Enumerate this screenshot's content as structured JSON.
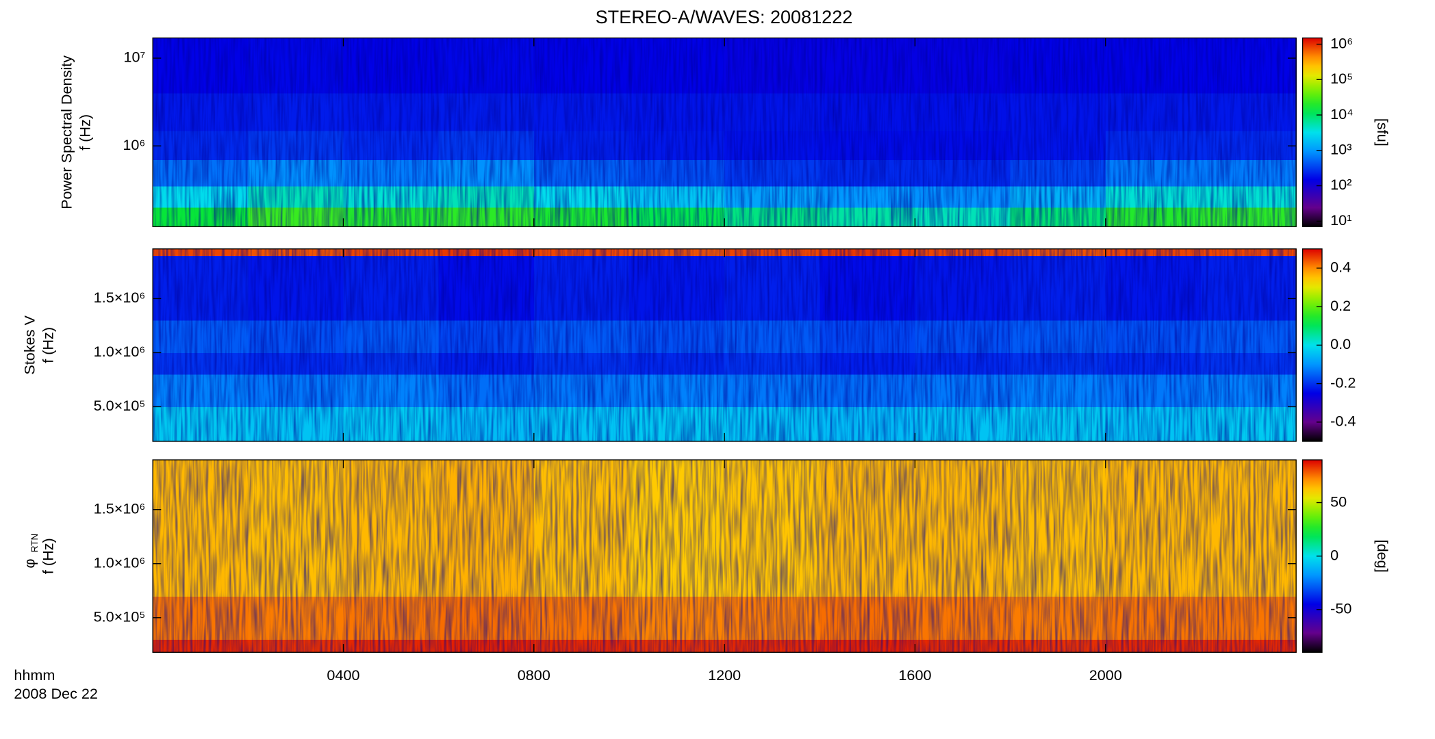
{
  "chart_data": [
    {
      "type": "heatmap",
      "title": "STEREO-A/WAVES: 20081222",
      "ylabel": [
        "Power Spectral Density",
        "f (Hz)"
      ],
      "xlim": [
        0,
        24
      ],
      "ylim": [
        120000,
        17000000
      ],
      "ylog": true,
      "yticks": [
        {
          "value": 1000000,
          "label": "10⁶"
        },
        {
          "value": 10000000,
          "label": "10⁷"
        }
      ],
      "xbins": [
        0,
        2,
        4,
        6,
        8,
        10,
        12,
        14,
        16,
        18,
        20,
        22,
        24
      ],
      "ybins": [
        120000,
        200000,
        350000,
        700000,
        1500000,
        4000000,
        17000000
      ],
      "z": [
        [
          15000,
          25000,
          20000,
          22000,
          18000,
          12000,
          8000,
          6000,
          5000,
          9000,
          20000,
          22000
        ],
        [
          3000,
          5000,
          4000,
          5000,
          3000,
          2000,
          1200,
          1000,
          900,
          1500,
          4000,
          4000
        ],
        [
          600,
          900,
          700,
          900,
          500,
          400,
          300,
          250,
          250,
          350,
          700,
          700
        ],
        [
          250,
          300,
          250,
          300,
          220,
          200,
          180,
          170,
          170,
          190,
          250,
          250
        ],
        [
          200,
          210,
          200,
          210,
          200,
          190,
          190,
          180,
          180,
          190,
          200,
          200
        ],
        [
          150,
          160,
          150,
          160,
          150,
          150,
          140,
          140,
          140,
          150,
          150,
          150
        ]
      ],
      "colormap": "rainbow",
      "clog": true,
      "clim": [
        7,
        1500000
      ],
      "cticks": [
        {
          "value": 10,
          "label": "10¹"
        },
        {
          "value": 100,
          "label": "10²"
        },
        {
          "value": 1000,
          "label": "10³"
        },
        {
          "value": 10000,
          "label": "10⁴"
        },
        {
          "value": 100000,
          "label": "10⁵"
        },
        {
          "value": 1000000,
          "label": "10⁶"
        }
      ],
      "clabel": "[sfu]"
    },
    {
      "type": "heatmap",
      "ylabel": [
        "Stokes V",
        "f (Hz)"
      ],
      "xlim": [
        0,
        24
      ],
      "ylim": [
        180000,
        1960000
      ],
      "yticks": [
        {
          "value": 500000,
          "label": "5.0×10⁵"
        },
        {
          "value": 1000000,
          "label": "1.0×10⁶"
        },
        {
          "value": 1500000,
          "label": "1.5×10⁶"
        }
      ],
      "xbins": [
        0,
        2,
        4,
        6,
        8,
        10,
        12,
        14,
        16,
        18,
        20,
        22,
        24
      ],
      "ybins": [
        180000,
        500000,
        800000,
        1000000,
        1300000,
        1900000,
        1960000
      ],
      "z": [
        [
          -0.03,
          -0.04,
          -0.03,
          -0.05,
          -0.04,
          -0.03,
          -0.04,
          -0.05,
          -0.04,
          -0.03,
          -0.04,
          -0.03
        ],
        [
          -0.12,
          -0.13,
          -0.12,
          -0.14,
          -0.13,
          -0.12,
          -0.13,
          -0.14,
          -0.13,
          -0.12,
          -0.13,
          -0.12
        ],
        [
          -0.2,
          -0.21,
          -0.2,
          -0.22,
          -0.2,
          -0.21,
          -0.2,
          -0.22,
          -0.21,
          -0.2,
          -0.21,
          -0.2
        ],
        [
          -0.16,
          -0.17,
          -0.16,
          -0.18,
          -0.16,
          -0.17,
          -0.16,
          -0.18,
          -0.17,
          -0.16,
          -0.17,
          -0.16
        ],
        [
          -0.22,
          -0.23,
          -0.22,
          -0.24,
          -0.22,
          -0.23,
          -0.22,
          -0.24,
          -0.23,
          -0.22,
          -0.23,
          -0.22
        ],
        [
          0.45,
          0.44,
          0.45,
          0.46,
          0.45,
          0.44,
          0.45,
          0.46,
          0.45,
          0.44,
          0.45,
          0.45
        ]
      ],
      "colormap": "rainbow",
      "clim": [
        -0.5,
        0.5
      ],
      "cticks": [
        -0.4,
        -0.2,
        {
          "value": 0,
          "label": "0.0"
        },
        0.2,
        0.4
      ]
    },
    {
      "type": "heatmap",
      "ylabel": [
        {
          "text": "φ",
          "sub": "RTN"
        },
        "f (Hz)"
      ],
      "xlim": [
        0,
        24
      ],
      "ylim": [
        180000,
        1960000
      ],
      "yticks": [
        {
          "value": 500000,
          "label": "5.0×10⁵"
        },
        {
          "value": 1000000,
          "label": "1.0×10⁶"
        },
        {
          "value": 1500000,
          "label": "1.5×10⁶"
        }
      ],
      "xticks": [
        {
          "value": 4,
          "label": "0400"
        },
        {
          "value": 8,
          "label": "0800"
        },
        {
          "value": 12,
          "label": "1200"
        },
        {
          "value": 16,
          "label": "1600"
        },
        {
          "value": 20,
          "label": "2000"
        }
      ],
      "xlabel": [
        "hhmm",
        "2008 Dec 22"
      ],
      "xbins": [
        0,
        2,
        4,
        6,
        8,
        10,
        12,
        14,
        16,
        18,
        20,
        22,
        24
      ],
      "ybins": [
        180000,
        300000,
        700000,
        1960000
      ],
      "z": [
        [
          85,
          84,
          85,
          86,
          85,
          84,
          85,
          86,
          85,
          84,
          85,
          85
        ],
        [
          75,
          74,
          75,
          76,
          75,
          73,
          74,
          76,
          75,
          74,
          75,
          75
        ],
        [
          65,
          64,
          65,
          66,
          64,
          62,
          63,
          65,
          65,
          64,
          65,
          65
        ]
      ],
      "colormap": "rainbow",
      "clim": [
        -90,
        90
      ],
      "cticks": [
        -50,
        0,
        50
      ],
      "clabel": "[deg]"
    }
  ]
}
